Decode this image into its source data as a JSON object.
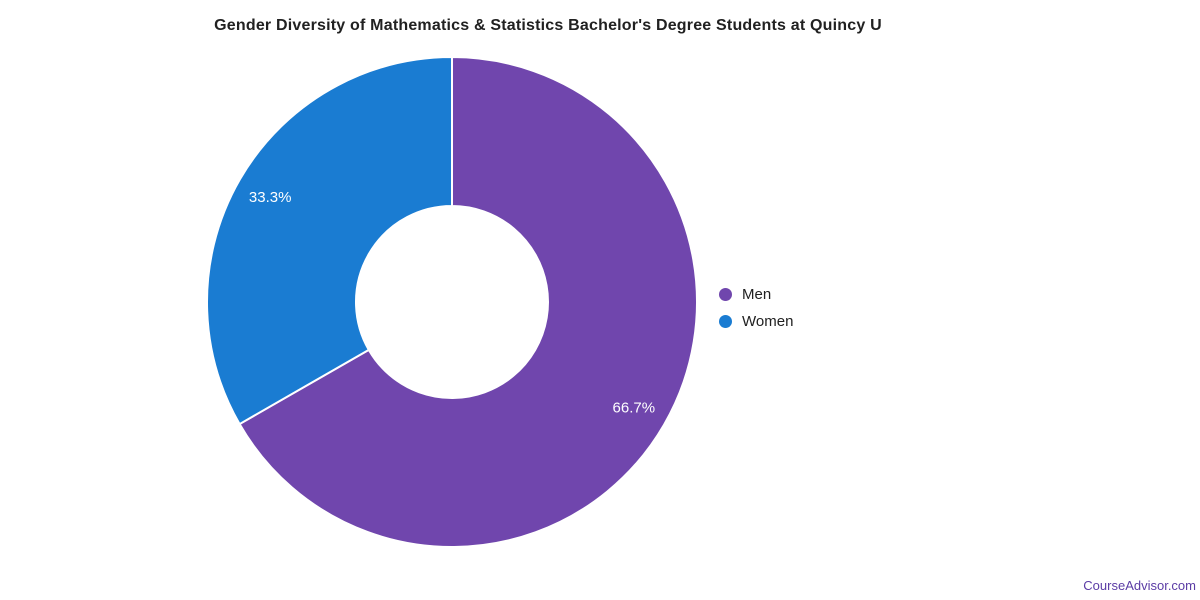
{
  "title": "Gender Diversity of Mathematics & Statistics Bachelor's Degree Students at Quincy U",
  "watermark": "CourseAdvisor.com",
  "chart_data": {
    "type": "pie",
    "subtype": "donut",
    "title": "Gender Diversity of Mathematics & Statistics Bachelor's Degree Students at Quincy U",
    "categories": [
      "Men",
      "Women"
    ],
    "values": [
      66.7,
      33.3
    ],
    "slice_labels": [
      "66.7%",
      "33.3%"
    ],
    "colors": [
      "#7046ad",
      "#1a7cd2"
    ],
    "start_angle_deg": 0,
    "direction": "clockwise",
    "legend_position": "right",
    "label_color": "#ffffff",
    "slice_border_color": "#ffffff"
  },
  "legend": {
    "items": [
      {
        "label": "Men",
        "color": "#7046ad"
      },
      {
        "label": "Women",
        "color": "#1a7cd2"
      }
    ]
  }
}
